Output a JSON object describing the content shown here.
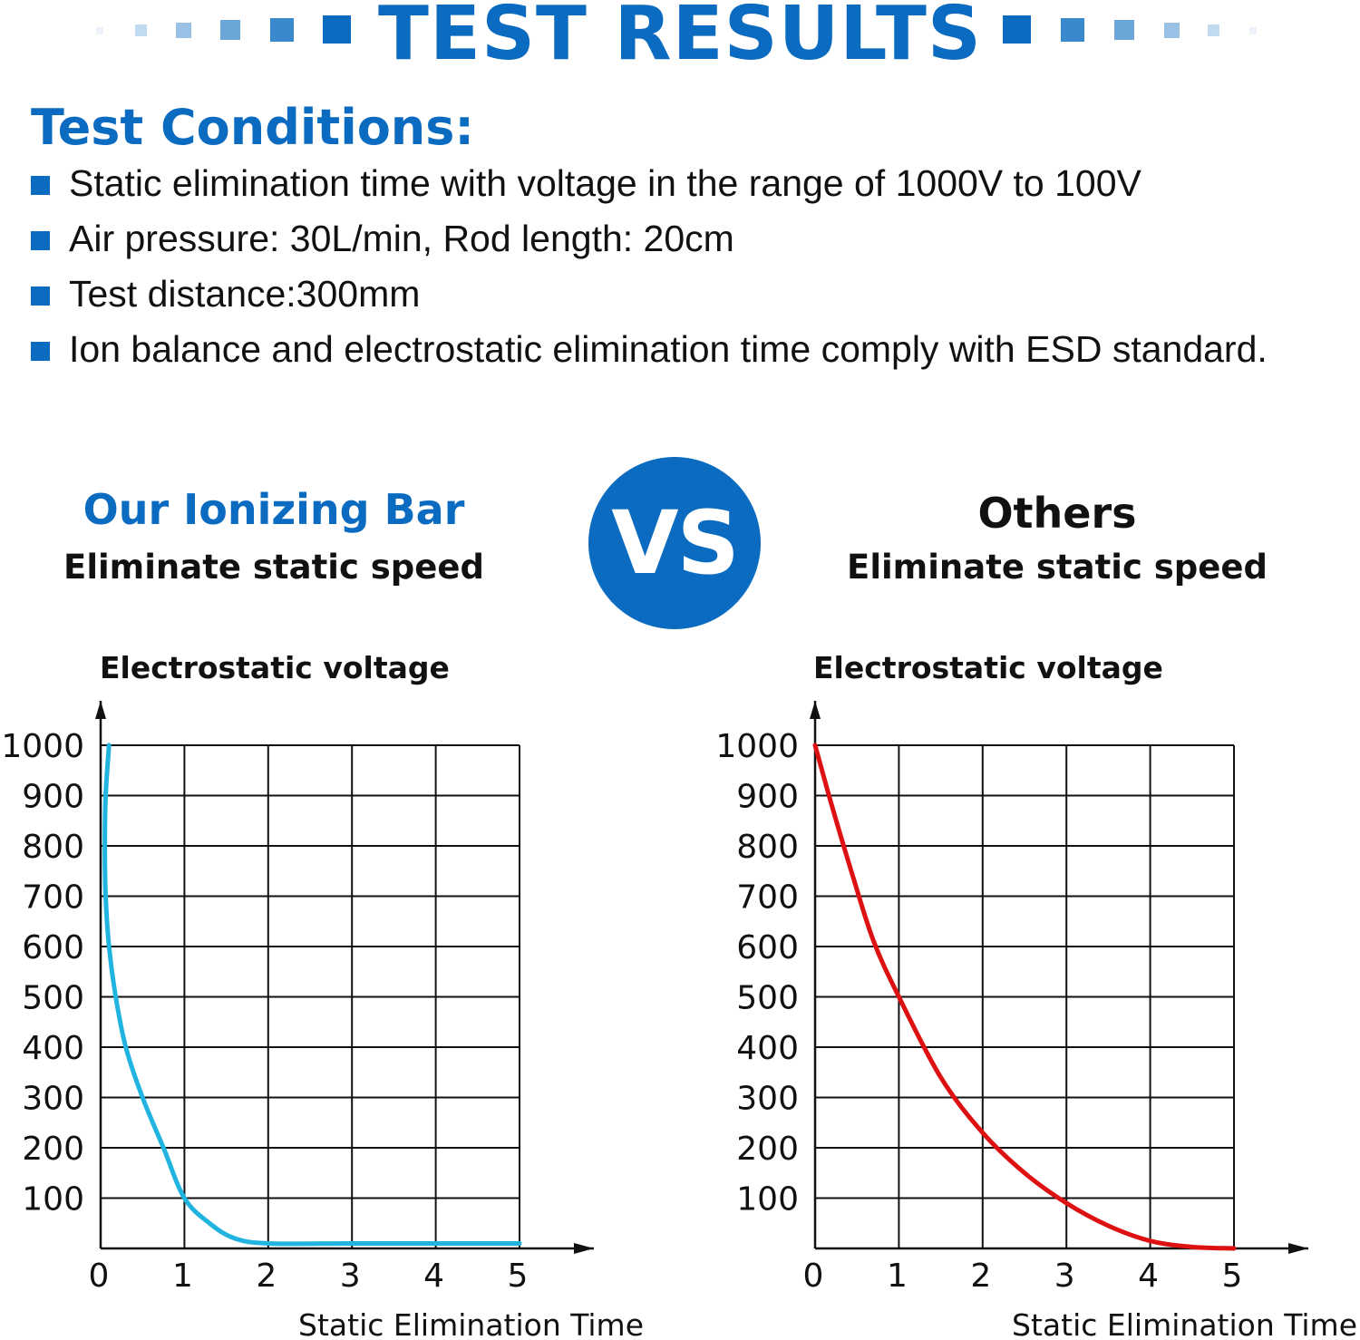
{
  "header": {
    "title": "TEST RESULTS"
  },
  "conditions": {
    "title": "Test Conditions:",
    "items": [
      "Static elimination time with voltage in the range of 1000V to 100V",
      "Air pressure: 30L/min, Rod length: 20cm",
      "Test distance:300mm",
      "Ion balance and electrostatic elimination time comply with ESD standard."
    ]
  },
  "left": {
    "title": "Our Ionizing Bar",
    "subtitle": "Eliminate static speed"
  },
  "vs_label": "VS",
  "right": {
    "title": "Others",
    "subtitle": "Eliminate static speed"
  },
  "colors": {
    "brand_blue": "#0a6bc0",
    "ours_curve": "#21b4e0",
    "others_curve": "#dd1111"
  },
  "chart_data": [
    {
      "type": "line",
      "ylabel": "Electrostatic voltage",
      "xlabel": "Static Elimination Time",
      "xlim": [
        0,
        5
      ],
      "ylim": [
        0,
        1000
      ],
      "x_ticks": [
        0,
        1,
        2,
        3,
        4,
        5
      ],
      "y_ticks": [
        100,
        200,
        300,
        400,
        500,
        600,
        700,
        800,
        900,
        1000
      ],
      "grid": true,
      "series": [
        {
          "color": "#21b4e0",
          "x": [
            0.1,
            0.06,
            0.05,
            0.06,
            0.1,
            0.18,
            0.3,
            0.5,
            0.75,
            1.0,
            1.3,
            1.6,
            2.0,
            3.0,
            4.0,
            5.0
          ],
          "y": [
            1000,
            900,
            800,
            700,
            600,
            500,
            400,
            300,
            200,
            100,
            50,
            20,
            10,
            10,
            10,
            10
          ]
        }
      ]
    },
    {
      "type": "line",
      "ylabel": "Electrostatic voltage",
      "xlabel": "Static Elimination Time",
      "xlim": [
        0,
        5
      ],
      "ylim": [
        0,
        1000
      ],
      "x_ticks": [
        0,
        1,
        2,
        3,
        4,
        5
      ],
      "y_ticks": [
        100,
        200,
        300,
        400,
        500,
        600,
        700,
        800,
        900,
        1000
      ],
      "grid": true,
      "series": [
        {
          "color": "#dd1111",
          "x": [
            0.0,
            0.2,
            0.45,
            0.7,
            1.0,
            1.5,
            2.0,
            2.5,
            3.0,
            3.5,
            4.0,
            4.5,
            5.0
          ],
          "y": [
            1000,
            880,
            740,
            610,
            500,
            340,
            230,
            150,
            90,
            45,
            15,
            3,
            0
          ]
        }
      ]
    }
  ]
}
